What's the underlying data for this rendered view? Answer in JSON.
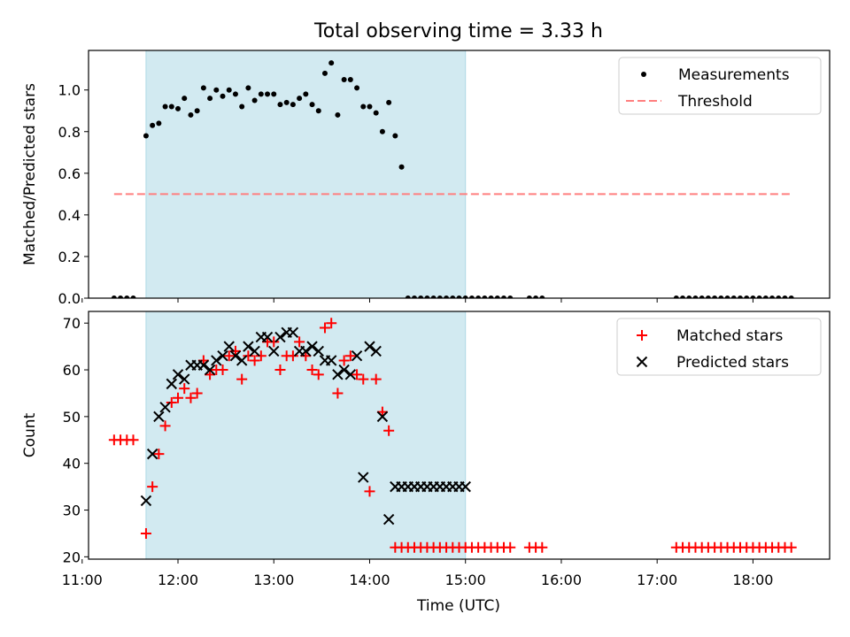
{
  "chart_data": {
    "type": "scatter",
    "title": "Total observing time = 3.33 h",
    "xlabel": "Time (UTC)",
    "x_ticks": [
      "11:00",
      "12:00",
      "13:00",
      "14:00",
      "15:00",
      "16:00",
      "17:00",
      "18:00"
    ],
    "xlim": [
      "11:04",
      "18:48"
    ],
    "shaded_interval": [
      "11:40",
      "15:00"
    ],
    "shade_color": "#add8e6",
    "panels": [
      {
        "name": "ratio",
        "ylabel": "Matched/Predicted stars",
        "ylim": [
          0,
          1.19
        ],
        "y_ticks": [
          "0.0",
          "0.2",
          "0.4",
          "0.6",
          "0.8",
          "1.0"
        ],
        "legend_position": "upper right",
        "series": [
          {
            "name": "Measurements",
            "marker": "dot",
            "color": "#000000",
            "x": [
              "11:20",
              "11:24",
              "11:28",
              "11:32",
              "11:40",
              "11:44",
              "11:48",
              "11:52",
              "11:56",
              "12:00",
              "12:04",
              "12:08",
              "12:12",
              "12:16",
              "12:20",
              "12:24",
              "12:28",
              "12:32",
              "12:36",
              "12:40",
              "12:44",
              "12:48",
              "12:52",
              "12:56",
              "13:00",
              "13:04",
              "13:08",
              "13:12",
              "13:16",
              "13:20",
              "13:24",
              "13:28",
              "13:32",
              "13:36",
              "13:40",
              "13:44",
              "13:48",
              "13:52",
              "13:56",
              "14:00",
              "14:04",
              "14:08",
              "14:12",
              "14:16",
              "14:20",
              "14:24",
              "14:28",
              "14:32",
              "14:36",
              "14:40",
              "14:44",
              "14:48",
              "14:52",
              "14:56",
              "15:00",
              "15:04",
              "15:08",
              "15:12",
              "15:16",
              "15:20",
              "15:24",
              "15:28",
              "15:40",
              "15:44",
              "15:48",
              "17:12",
              "17:16",
              "17:20",
              "17:24",
              "17:28",
              "17:32",
              "17:36",
              "17:40",
              "17:44",
              "17:48",
              "17:52",
              "17:56",
              "18:00",
              "18:04",
              "18:08",
              "18:12",
              "18:16",
              "18:20",
              "18:24"
            ],
            "y": [
              0,
              0,
              0,
              0,
              0.78,
              0.83,
              0.84,
              0.92,
              0.92,
              0.91,
              0.96,
              0.88,
              0.9,
              1.01,
              0.96,
              1.0,
              0.97,
              1.0,
              0.98,
              0.92,
              1.01,
              0.95,
              0.98,
              0.98,
              0.98,
              0.93,
              0.94,
              0.93,
              0.96,
              0.98,
              0.93,
              0.9,
              1.08,
              1.13,
              0.88,
              1.05,
              1.05,
              1.01,
              0.92,
              0.92,
              0.89,
              0.8,
              0.94,
              0.78,
              0.63,
              0,
              0,
              0,
              0,
              0,
              0,
              0,
              0,
              0,
              0,
              0,
              0,
              0,
              0,
              0,
              0,
              0,
              0,
              0,
              0,
              0,
              0,
              0,
              0,
              0,
              0,
              0,
              0,
              0,
              0,
              0,
              0,
              0,
              0,
              0,
              0,
              0,
              0,
              0
            ]
          },
          {
            "name": "Threshold",
            "marker": "dashed-line",
            "color": "#ff7f7f",
            "x": [
              "11:20",
              "18:24"
            ],
            "y": [
              0.5,
              0.5
            ]
          }
        ]
      },
      {
        "name": "count",
        "ylabel": "Count",
        "ylim": [
          19.5,
          72.5
        ],
        "y_ticks": [
          "20",
          "30",
          "40",
          "50",
          "60",
          "70"
        ],
        "legend_position": "upper right",
        "series": [
          {
            "name": "Matched stars",
            "marker": "plus",
            "color": "#ff0000",
            "x": [
              "11:20",
              "11:24",
              "11:28",
              "11:32",
              "11:40",
              "11:44",
              "11:48",
              "11:52",
              "11:56",
              "12:00",
              "12:04",
              "12:08",
              "12:12",
              "12:16",
              "12:20",
              "12:24",
              "12:28",
              "12:32",
              "12:36",
              "12:40",
              "12:44",
              "12:48",
              "12:52",
              "12:56",
              "13:00",
              "13:04",
              "13:08",
              "13:12",
              "13:16",
              "13:20",
              "13:24",
              "13:28",
              "13:32",
              "13:36",
              "13:40",
              "13:44",
              "13:48",
              "13:52",
              "13:56",
              "14:00",
              "14:04",
              "14:08",
              "14:12",
              "14:16",
              "14:20",
              "14:24",
              "14:28",
              "14:32",
              "14:36",
              "14:40",
              "14:44",
              "14:48",
              "14:52",
              "14:56",
              "15:00",
              "15:04",
              "15:08",
              "15:12",
              "15:16",
              "15:20",
              "15:24",
              "15:28",
              "15:40",
              "15:44",
              "15:48",
              "17:12",
              "17:16",
              "17:20",
              "17:24",
              "17:28",
              "17:32",
              "17:36",
              "17:40",
              "17:44",
              "17:48",
              "17:52",
              "17:56",
              "18:00",
              "18:04",
              "18:08",
              "18:12",
              "18:16",
              "18:20",
              "18:24"
            ],
            "y": [
              45,
              45,
              45,
              45,
              25,
              35,
              42,
              48,
              53,
              54,
              56,
              54,
              55,
              62,
              59,
              60,
              60,
              63,
              64,
              58,
              63,
              62,
              63,
              66,
              66,
              60,
              63,
              63,
              66,
              63,
              60,
              59,
              69,
              70,
              55,
              62,
              63,
              59,
              58,
              34,
              58,
              51,
              47,
              22,
              22,
              22,
              22,
              22,
              22,
              22,
              22,
              22,
              22,
              22,
              22,
              22,
              22,
              22,
              22,
              22,
              22,
              22,
              22,
              22,
              22,
              22,
              22,
              22,
              22,
              22,
              22,
              22,
              22,
              22,
              22,
              22,
              22,
              22,
              22,
              22,
              22,
              22,
              22,
              22
            ]
          },
          {
            "name": "Predicted stars",
            "marker": "x",
            "color": "#000000",
            "x": [
              "11:40",
              "11:44",
              "11:48",
              "11:52",
              "11:56",
              "12:00",
              "12:04",
              "12:08",
              "12:12",
              "12:16",
              "12:20",
              "12:24",
              "12:28",
              "12:32",
              "12:36",
              "12:40",
              "12:44",
              "12:48",
              "12:52",
              "12:56",
              "13:00",
              "13:04",
              "13:08",
              "13:12",
              "13:16",
              "13:20",
              "13:24",
              "13:28",
              "13:32",
              "13:36",
              "13:40",
              "13:44",
              "13:48",
              "13:52",
              "13:56",
              "14:00",
              "14:04",
              "14:08",
              "14:12",
              "14:16",
              "14:20",
              "14:24",
              "14:28",
              "14:32",
              "14:36",
              "14:40",
              "14:44",
              "14:48",
              "14:52",
              "14:56",
              "15:00"
            ],
            "y": [
              32,
              42,
              50,
              52,
              57,
              59,
              58,
              61,
              61,
              61,
              60,
              62,
              63,
              65,
              63,
              62,
              65,
              64,
              67,
              67,
              64,
              67,
              68,
              68,
              64,
              64,
              65,
              64,
              62,
              62,
              59,
              60,
              59,
              63,
              37,
              65,
              64,
              50,
              28,
              35,
              35,
              35,
              35,
              35,
              35,
              35,
              35,
              35,
              35,
              35,
              35
            ]
          }
        ]
      }
    ]
  }
}
